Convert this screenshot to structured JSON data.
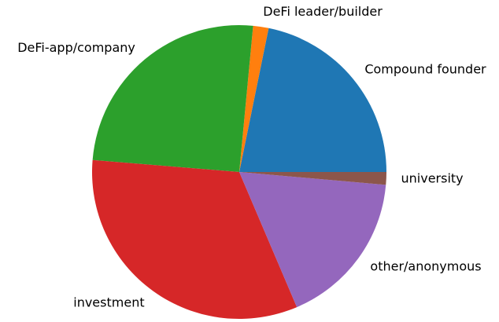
{
  "chart_data": {
    "type": "pie",
    "categories": [
      "Compound founder",
      "DeFi leader/builder",
      "DeFi-app/company",
      "investment",
      "other/anonymous",
      "university"
    ],
    "values": [
      21.8,
      1.7,
      25.2,
      32.7,
      17.2,
      1.4
    ],
    "colors": [
      "#1f77b4",
      "#ff7f0e",
      "#2ca02c",
      "#d62728",
      "#9467bd",
      "#8c564b"
    ],
    "start_angle": 0
  }
}
